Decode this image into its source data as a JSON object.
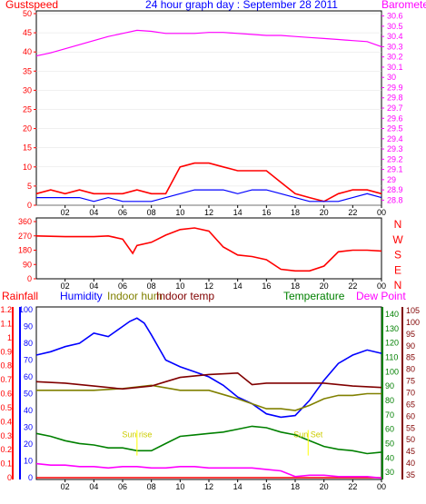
{
  "title": "24 hour graph day : September 28 2011",
  "colors": {
    "frame": "#000000",
    "grid": "#000000",
    "gust": "#ff0000",
    "wind": "#0000ff",
    "baro": "#ff00ff",
    "dir": "#ff0000",
    "rain": "#ff0000",
    "humidity": "#0000ff",
    "indoorhum": "#808000",
    "indoortemp": "#800000",
    "temperature": "#008000",
    "dewpoint": "#ff00ff",
    "sun": "#ffff00"
  },
  "chart_data": [
    {
      "type": "line",
      "panel": "wind-barometer",
      "left_axis_label": "Gustspeed",
      "right_axis_label": "Barometer",
      "x_ticks": [
        "02",
        "04",
        "06",
        "08",
        "10",
        "12",
        "14",
        "16",
        "18",
        "20",
        "22",
        "00"
      ],
      "y_left_ticks": [
        "0",
        "5",
        "10",
        "15",
        "20",
        "25",
        "30",
        "35",
        "40",
        "45",
        "50"
      ],
      "y_left_range": [
        0,
        50
      ],
      "y_right_ticks": [
        "28.8",
        "28.9",
        "29",
        "29.1",
        "29.2",
        "29.3",
        "29.4",
        "29.5",
        "29.6",
        "29.7",
        "29.8",
        "29.9",
        "30",
        "30.1",
        "30.2",
        "30.3",
        "30.4",
        "30.5",
        "30.6"
      ],
      "y_right_range": [
        28.75,
        30.65
      ],
      "series": [
        {
          "name": "Gustspeed",
          "color_key": "gust",
          "x": [
            0,
            1,
            2,
            3,
            4,
            5,
            6,
            7,
            8,
            9,
            10,
            11,
            12,
            13,
            14,
            15,
            16,
            17,
            18,
            19,
            20,
            21,
            22,
            23,
            24
          ],
          "y": [
            3,
            4,
            3,
            4,
            3,
            3,
            3,
            4,
            3,
            3,
            10,
            11,
            11,
            10,
            9,
            9,
            9,
            6,
            3,
            2,
            1,
            3,
            4,
            4,
            3
          ]
        },
        {
          "name": "Windspeed",
          "color_key": "wind",
          "x": [
            0,
            1,
            2,
            3,
            4,
            5,
            6,
            7,
            8,
            9,
            10,
            11,
            12,
            13,
            14,
            15,
            16,
            17,
            18,
            19,
            20,
            21,
            22,
            23,
            24
          ],
          "y": [
            2,
            2,
            2,
            2,
            1,
            2,
            1,
            1,
            1,
            2,
            3,
            4,
            4,
            4,
            3,
            4,
            4,
            3,
            2,
            1,
            1,
            1,
            2,
            3,
            2
          ]
        },
        {
          "name": "Barometer",
          "axis": "right",
          "color_key": "baro",
          "x": [
            0,
            1,
            2,
            3,
            4,
            5,
            6,
            7,
            8,
            9,
            10,
            11,
            12,
            13,
            14,
            15,
            16,
            17,
            18,
            19,
            20,
            21,
            22,
            23,
            24
          ],
          "y": [
            30.21,
            30.24,
            30.28,
            30.32,
            30.36,
            30.4,
            30.43,
            30.46,
            30.45,
            30.43,
            30.43,
            30.43,
            30.44,
            30.44,
            30.43,
            30.42,
            30.41,
            30.41,
            30.4,
            30.39,
            30.38,
            30.37,
            30.36,
            30.35,
            30.3
          ]
        }
      ]
    },
    {
      "type": "line",
      "panel": "wind-direction",
      "y_left_ticks": [
        "0",
        "90",
        "180",
        "270",
        "360"
      ],
      "y_left_range": [
        0,
        360
      ],
      "y_right_ticks": [
        "N",
        "W",
        "S",
        "E",
        "N"
      ],
      "x_ticks": [
        "02",
        "04",
        "06",
        "08",
        "10",
        "12",
        "14",
        "16",
        "18",
        "20",
        "22",
        "00"
      ],
      "series": [
        {
          "name": "Winddirection",
          "color_key": "dir",
          "x": [
            0,
            2,
            4,
            5,
            6,
            6.7,
            7,
            8,
            9,
            10,
            11,
            12,
            13,
            14,
            15,
            16,
            17,
            18,
            19,
            20,
            21,
            22,
            23,
            24
          ],
          "y": [
            270,
            265,
            265,
            270,
            250,
            160,
            210,
            230,
            275,
            310,
            320,
            300,
            200,
            150,
            140,
            120,
            60,
            50,
            50,
            80,
            170,
            180,
            180,
            175
          ]
        }
      ]
    },
    {
      "type": "line",
      "panel": "temperature-humidity",
      "legend": [
        "Rainfall",
        "Humidity",
        "Indoor hum",
        "Indoor temp",
        "Temperature",
        "Dew Point"
      ],
      "x_ticks": [
        "02",
        "04",
        "06",
        "08",
        "10",
        "12",
        "14",
        "16",
        "18",
        "20",
        "22",
        "00"
      ],
      "rain_ticks": [
        "0",
        "0.1",
        "0.2",
        "0.3",
        "0.4",
        "0.5",
        "0.6",
        "0.7",
        "0.8",
        "0.9",
        "1",
        "1.1",
        "1.2"
      ],
      "rain_range": [
        0,
        1.2
      ],
      "humidity_ticks": [
        "0",
        "10",
        "20",
        "30",
        "40",
        "50",
        "60",
        "70",
        "80",
        "90",
        "100"
      ],
      "humidity_range": [
        0,
        100
      ],
      "temp_ticks_green": [
        "30",
        "40",
        "50",
        "60",
        "70",
        "80",
        "90",
        "100",
        "110",
        "120",
        "130",
        "140"
      ],
      "temp_range_green": [
        25,
        145
      ],
      "temp_ticks_red": [
        "35",
        "40",
        "45",
        "50",
        "55",
        "60",
        "65",
        "70",
        "75",
        "80",
        "85",
        "90",
        "95",
        "100",
        "105"
      ],
      "annotations": [
        {
          "text": "Sun rise",
          "x": 7.0,
          "value": 24
        },
        {
          "text": "Sun Set",
          "x": 18.9,
          "value": 24
        }
      ],
      "series": [
        {
          "name": "Rainfall",
          "color_key": "rain",
          "axis": "rain",
          "x": [
            0,
            24
          ],
          "y": [
            0,
            0
          ]
        },
        {
          "name": "Humidity",
          "color_key": "humidity",
          "axis": "humidity",
          "x": [
            0,
            1,
            2,
            3,
            4,
            5,
            6,
            6.5,
            7,
            7.5,
            8,
            9,
            10,
            11,
            12,
            13,
            14,
            15,
            16,
            17,
            18,
            19,
            20,
            21,
            22,
            23,
            24
          ],
          "y": [
            73,
            75,
            78,
            80,
            86,
            84,
            90,
            93,
            95,
            92,
            85,
            70,
            66,
            63,
            60,
            55,
            48,
            44,
            38,
            36,
            37,
            46,
            58,
            68,
            73,
            76,
            74
          ]
        },
        {
          "name": "Indoor hum",
          "color_key": "indoorhum",
          "axis": "humidity",
          "x": [
            0,
            2,
            4,
            6,
            8,
            10,
            12,
            14,
            15,
            16,
            17,
            18,
            19,
            20,
            21,
            22,
            23,
            24
          ],
          "y": [
            52,
            52,
            52,
            53,
            55,
            52,
            52,
            47,
            44,
            41,
            41,
            40,
            43,
            47,
            49,
            49,
            50,
            50
          ]
        },
        {
          "name": "Indoor temp",
          "color_key": "indoortemp",
          "axis": "temp_green",
          "x": [
            0,
            2,
            4,
            6,
            8,
            9,
            10,
            12,
            14,
            15,
            16,
            18,
            20,
            22,
            24
          ],
          "y": [
            93,
            92,
            90,
            88,
            90,
            93,
            96,
            98,
            99,
            91,
            92,
            92,
            92,
            90,
            89
          ]
        },
        {
          "name": "Temperature",
          "color_key": "temperature",
          "axis": "temp_green",
          "x": [
            0,
            1,
            2,
            3,
            4,
            5,
            6,
            7,
            8,
            9,
            10,
            11,
            12,
            13,
            14,
            15,
            16,
            17,
            18,
            19,
            20,
            21,
            22,
            23,
            24
          ],
          "y": [
            57,
            55,
            52,
            50,
            49,
            47,
            47,
            45,
            45,
            50,
            55,
            56,
            57,
            58,
            60,
            62,
            61,
            58,
            56,
            52,
            48,
            46,
            45,
            43,
            44
          ]
        },
        {
          "name": "Dew Point",
          "color_key": "dewpoint",
          "axis": "temp_green",
          "x": [
            0,
            1,
            2,
            3,
            4,
            5,
            6,
            7,
            8,
            9,
            10,
            11,
            12,
            13,
            14,
            15,
            16,
            17,
            18,
            19,
            20,
            21,
            22,
            23,
            24
          ],
          "y": [
            36,
            35,
            35,
            34,
            34,
            33,
            34,
            34,
            33,
            33,
            34,
            34,
            33,
            33,
            33,
            33,
            32,
            31,
            27,
            28,
            28,
            27,
            27,
            27,
            26
          ]
        }
      ]
    }
  ]
}
